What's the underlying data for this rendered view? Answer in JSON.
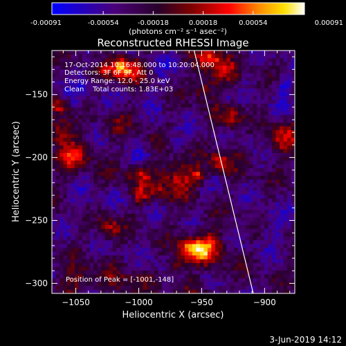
{
  "chart_data": {
    "type": "heatmap",
    "title": "Reconstructed RHESSI Image",
    "xlabel": "Heliocentric X (arcsec)",
    "ylabel": "Heliocentric Y (arcsec)",
    "xlim": [
      -1069,
      -876
    ],
    "ylim": [
      -308,
      -115
    ],
    "x_ticks": [
      -1050,
      -1000,
      -950,
      -900
    ],
    "x_tick_labels": [
      "−1050",
      "−1000",
      "−950",
      "−900"
    ],
    "y_ticks": [
      -150,
      -200,
      -250,
      -300
    ],
    "y_tick_labels": [
      "−150",
      "−200",
      "−250",
      "−300"
    ],
    "colorbar": {
      "range": [
        -0.00091,
        0.00091
      ],
      "ticks": [
        -0.00091,
        -0.00054,
        -0.00018,
        0.00018,
        0.00054,
        0.00091
      ],
      "tick_labels": [
        "-0.00091",
        "-0.00054",
        "-0.00018",
        "0.00018",
        "0.00054",
        "0.00091"
      ],
      "units_label": "(photons cm⁻² s⁻¹ asec⁻²)",
      "colormap": [
        "#0000ff",
        "#4b0078",
        "#28002a",
        "#7a0000",
        "#ff0000",
        "#ff8c00",
        "#ffe000",
        "#ffffff"
      ]
    },
    "annotations": [
      "17-Oct-2014 10:16:48.000 to 10:20:04.000",
      "Detectors: 3F 6F 9F, Att 0",
      "Energy Range: 12.0 - 25.0 keV",
      "Clean    Total counts: 1.83E+03"
    ],
    "peak_label": "Position of Peak = [-1001,-148]",
    "limb_line": {
      "from": [
        -956,
        -115
      ],
      "to": [
        -909,
        -308
      ]
    },
    "grid_size": 64,
    "seed": 20141017
  },
  "footer": {
    "timestamp": "3-Jun-2019 14:12"
  }
}
